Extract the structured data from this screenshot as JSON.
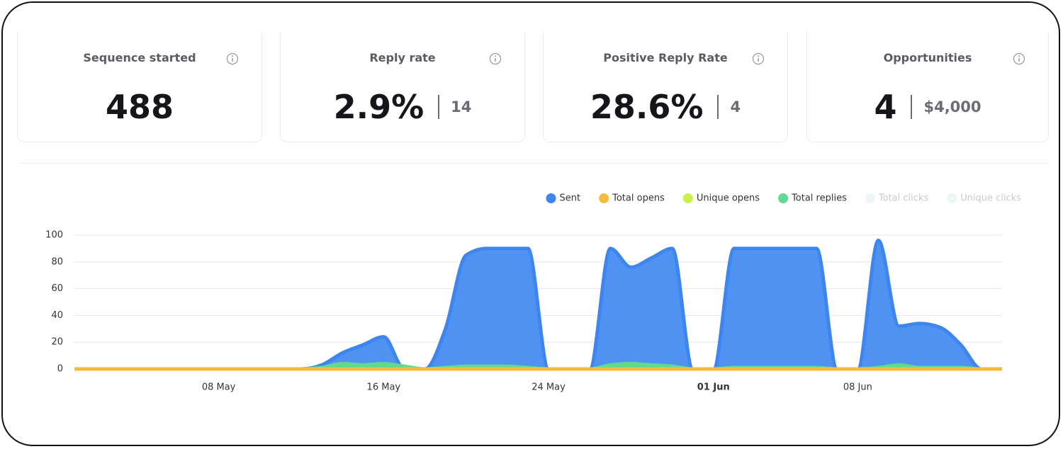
{
  "cards": [
    {
      "title": "Sequence started",
      "value": "488"
    },
    {
      "title": "Reply rate",
      "value": "2.9%",
      "secondary": "14"
    },
    {
      "title": "Positive Reply Rate",
      "value": "28.6%",
      "secondary": "4"
    },
    {
      "title": "Opportunities",
      "value": "4",
      "secondary": "$4,000"
    }
  ],
  "chart_data": {
    "type": "area",
    "categories": [
      null,
      null,
      null,
      null,
      null,
      null,
      null,
      "08 May",
      null,
      null,
      null,
      null,
      null,
      null,
      null,
      "16 May",
      null,
      null,
      null,
      null,
      null,
      null,
      null,
      "24 May",
      null,
      null,
      null,
      null,
      null,
      null,
      null,
      "01 Jun",
      null,
      null,
      null,
      null,
      null,
      null,
      "08 Jun",
      null,
      null,
      null,
      null,
      null,
      null,
      null
    ],
    "ylim": [
      0,
      100
    ],
    "yticks": [
      0,
      20,
      40,
      60,
      80,
      100
    ],
    "grid": true,
    "series": [
      {
        "name": "Sent",
        "color": "#3d86f0",
        "visible": true,
        "values": [
          0,
          0,
          0,
          0,
          0,
          0,
          0,
          0,
          0,
          0,
          0,
          0,
          3,
          12,
          18,
          24,
          0,
          0,
          30,
          85,
          90,
          90,
          90,
          0,
          0,
          0,
          90,
          76,
          83,
          90,
          0,
          0,
          90,
          90,
          90,
          90,
          90,
          0,
          0,
          96,
          32,
          34,
          31,
          18,
          0,
          0
        ]
      },
      {
        "name": "Total opens",
        "color": "#f5bb3c",
        "visible": true,
        "values": [
          0,
          0,
          0,
          0,
          0,
          0,
          0,
          0,
          0,
          0,
          0,
          0,
          0,
          0,
          0,
          0,
          0,
          0,
          0,
          0,
          0,
          0,
          0,
          0,
          0,
          0,
          0,
          0,
          0,
          0,
          0,
          0,
          0,
          0,
          0,
          0,
          0,
          0,
          0,
          0,
          0,
          0,
          0,
          0,
          0,
          0
        ]
      },
      {
        "name": "Unique opens",
        "color": "#c8f24a",
        "visible": true,
        "values": [
          0,
          0,
          0,
          0,
          0,
          0,
          0,
          0,
          0,
          0,
          0,
          0,
          0,
          0,
          0,
          0,
          0,
          0,
          0,
          0,
          0,
          0,
          0,
          0,
          0,
          0,
          0,
          0,
          0,
          0,
          0,
          0,
          0,
          0,
          0,
          0,
          0,
          0,
          0,
          0,
          0,
          0,
          0,
          0,
          0,
          0
        ]
      },
      {
        "name": "Total replies",
        "color": "#5edb8e",
        "visible": true,
        "values": [
          0,
          0,
          0,
          0,
          0,
          0,
          0,
          0,
          0,
          0,
          0,
          0,
          1,
          4,
          3,
          4,
          2,
          0,
          1,
          2,
          2,
          2,
          1,
          0,
          0,
          0,
          3,
          4,
          3,
          2,
          0,
          0,
          1,
          1,
          1,
          1,
          1,
          0,
          0,
          1,
          3,
          1,
          1,
          1,
          0,
          0
        ]
      },
      {
        "name": "Total clicks",
        "color": "#eef6f8",
        "visible": false,
        "values": [
          0,
          0,
          0,
          0,
          0,
          0,
          0,
          0,
          0,
          0,
          0,
          0,
          0,
          0,
          0,
          0,
          0,
          0,
          0,
          0,
          0,
          0,
          0,
          0,
          0,
          0,
          0,
          0,
          0,
          0,
          0,
          0,
          0,
          0,
          0,
          0,
          0,
          0,
          0,
          0,
          0,
          0,
          0,
          0,
          0,
          0
        ]
      },
      {
        "name": "Unique clicks",
        "color": "#eef6f8",
        "visible": false,
        "values": [
          0,
          0,
          0,
          0,
          0,
          0,
          0,
          0,
          0,
          0,
          0,
          0,
          0,
          0,
          0,
          0,
          0,
          0,
          0,
          0,
          0,
          0,
          0,
          0,
          0,
          0,
          0,
          0,
          0,
          0,
          0,
          0,
          0,
          0,
          0,
          0,
          0,
          0,
          0,
          0,
          0,
          0,
          0,
          0,
          0,
          0
        ]
      }
    ]
  }
}
